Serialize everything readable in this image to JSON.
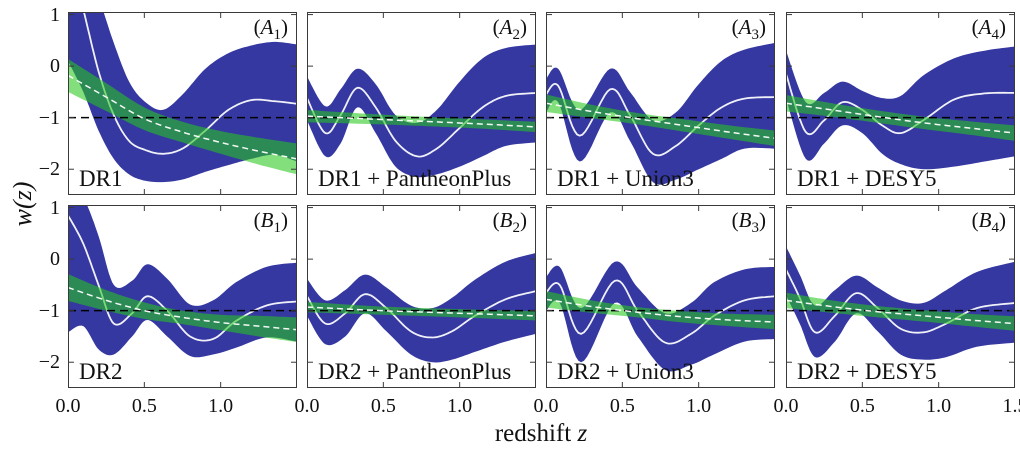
{
  "figure": {
    "axes": {
      "ylabel": "w(z)",
      "xlabel_text": "redshift ",
      "xlabel_var": "z"
    },
    "colors": {
      "blue_band": "#3438a0",
      "green_band": "rgba(40,200,30,0.58)",
      "mean_line": "#ffffff",
      "reference_line": "#000000",
      "frame": "#3a3a3a"
    }
  },
  "chart_data": [
    {
      "type": "area",
      "panel_tag": {
        "letter": "A",
        "sub": "1"
      },
      "dataset_label": "DR1",
      "x_range": [
        0,
        1.5
      ],
      "y_range": [
        -2.5,
        1.05
      ],
      "x_tick_values": [
        0,
        0.5,
        1.0
      ],
      "x_tick_labels": [
        "0.0",
        "0.5",
        "1.0"
      ],
      "y_tick_values": [
        1,
        0,
        -1,
        -2
      ],
      "y_tick_labels": [
        "1",
        "0",
        "−1",
        "−2"
      ],
      "show_y_tick_labels": true,
      "reference_w": -1,
      "blue": {
        "x": [
          0,
          0.1,
          0.2,
          0.3,
          0.4,
          0.5,
          0.62,
          0.75,
          0.9,
          1.05,
          1.2,
          1.35,
          1.5
        ],
        "mean": [
          2.2,
          1.1,
          -0.1,
          -0.95,
          -1.45,
          -1.62,
          -1.7,
          -1.6,
          -1.25,
          -0.85,
          -0.66,
          -0.68,
          -0.73
        ],
        "upper": [
          2.6,
          2.2,
          1.35,
          0.45,
          -0.3,
          -0.68,
          -0.85,
          -0.55,
          -0.05,
          0.25,
          0.4,
          0.47,
          0.42
        ],
        "lower": [
          0.1,
          -0.5,
          -1.25,
          -1.8,
          -2.1,
          -2.22,
          -2.25,
          -2.2,
          -2.05,
          -1.92,
          -1.8,
          -1.72,
          -1.85
        ]
      },
      "green": {
        "x": [
          0,
          0.25,
          0.5,
          0.75,
          1.0,
          1.25,
          1.5
        ],
        "center": [
          -0.18,
          -0.6,
          -1.02,
          -1.28,
          -1.48,
          -1.65,
          -1.8
        ],
        "halfwidth": [
          0.32,
          0.27,
          0.22,
          0.2,
          0.22,
          0.26,
          0.3
        ]
      }
    },
    {
      "type": "area",
      "panel_tag": {
        "letter": "A",
        "sub": "2"
      },
      "dataset_label": "DR1 + PantheonPlus",
      "x_range": [
        0,
        1.5
      ],
      "y_range": [
        -2.5,
        1.05
      ],
      "x_tick_values": [
        0,
        0.5,
        1.0
      ],
      "x_tick_labels": [
        "0.0",
        "0.5",
        "1.0"
      ],
      "y_tick_values": [
        1,
        0,
        -1,
        -2
      ],
      "y_tick_labels": [
        "1",
        "0",
        "−1",
        "−2"
      ],
      "show_y_tick_labels": false,
      "reference_w": -1,
      "blue": {
        "x": [
          0,
          0.12,
          0.22,
          0.33,
          0.45,
          0.58,
          0.72,
          0.85,
          1.0,
          1.15,
          1.3,
          1.5
        ],
        "mean": [
          -0.62,
          -1.3,
          -0.95,
          -0.42,
          -0.8,
          -1.45,
          -1.75,
          -1.6,
          -1.2,
          -0.8,
          -0.58,
          -0.52
        ],
        "upper": [
          -0.2,
          -0.78,
          -0.45,
          -0.05,
          -0.35,
          -0.95,
          -1.1,
          -0.85,
          -0.3,
          0.15,
          0.35,
          0.42
        ],
        "lower": [
          -1.05,
          -1.75,
          -1.5,
          -0.8,
          -1.3,
          -1.95,
          -2.15,
          -2.1,
          -1.95,
          -1.75,
          -1.55,
          -1.48
        ]
      },
      "green": {
        "x": [
          0,
          0.375,
          0.75,
          1.125,
          1.5
        ],
        "center": [
          -0.97,
          -1.02,
          -1.07,
          -1.12,
          -1.18
        ],
        "halfwidth": [
          0.12,
          0.1,
          0.09,
          0.09,
          0.1
        ]
      }
    },
    {
      "type": "area",
      "panel_tag": {
        "letter": "A",
        "sub": "3"
      },
      "dataset_label": "DR1 + Union3",
      "x_range": [
        0,
        1.5
      ],
      "y_range": [
        -2.5,
        1.05
      ],
      "x_tick_values": [
        0,
        0.5,
        1.0
      ],
      "x_tick_labels": [
        "0.0",
        "0.5",
        "1.0"
      ],
      "y_tick_values": [
        1,
        0,
        -1,
        -2
      ],
      "y_tick_labels": [
        "1",
        "0",
        "−1",
        "−2"
      ],
      "show_y_tick_labels": false,
      "reference_w": -1,
      "blue": {
        "x": [
          0,
          0.08,
          0.22,
          0.42,
          0.55,
          0.7,
          0.85,
          1.0,
          1.15,
          1.3,
          1.5
        ],
        "mean": [
          -0.55,
          -0.38,
          -1.35,
          -0.45,
          -0.95,
          -1.7,
          -1.55,
          -1.15,
          -0.8,
          -0.63,
          -0.6
        ],
        "upper": [
          -0.25,
          -0.05,
          -0.85,
          -0.05,
          -0.5,
          -1.05,
          -0.9,
          -0.35,
          0.1,
          0.32,
          0.45
        ],
        "lower": [
          -0.9,
          -0.7,
          -1.85,
          -0.9,
          -1.45,
          -2.25,
          -2.2,
          -2.0,
          -1.8,
          -1.6,
          -1.6
        ]
      },
      "green": {
        "x": [
          0,
          0.3,
          0.6,
          0.9,
          1.2,
          1.5
        ],
        "center": [
          -0.72,
          -0.88,
          -1.02,
          -1.15,
          -1.28,
          -1.4
        ],
        "halfwidth": [
          0.17,
          0.13,
          0.11,
          0.12,
          0.13,
          0.15
        ]
      }
    },
    {
      "type": "area",
      "panel_tag": {
        "letter": "A",
        "sub": "4"
      },
      "dataset_label": "DR1 + DESY5",
      "x_range": [
        0,
        1.5
      ],
      "y_range": [
        -2.5,
        1.05
      ],
      "x_tick_values": [
        0,
        0.5,
        1.0
      ],
      "x_tick_labels": [
        "0.0",
        "0.5",
        "1.0"
      ],
      "y_tick_values": [
        1,
        0,
        -1,
        -2
      ],
      "y_tick_labels": [
        "1",
        "0",
        "−1",
        "−2"
      ],
      "show_y_tick_labels": false,
      "reference_w": -1,
      "blue": {
        "x": [
          0,
          0.13,
          0.25,
          0.37,
          0.5,
          0.63,
          0.75,
          0.9,
          1.1,
          1.3,
          1.5
        ],
        "mean": [
          -0.15,
          -1.28,
          -1.05,
          -0.7,
          -0.85,
          -1.15,
          -1.3,
          -1.05,
          -0.65,
          -0.53,
          -0.52
        ],
        "upper": [
          0.3,
          -0.7,
          -0.52,
          -0.3,
          -0.48,
          -0.62,
          -0.58,
          -0.18,
          0.15,
          0.3,
          0.38
        ],
        "lower": [
          -0.62,
          -1.8,
          -1.5,
          -1.15,
          -1.3,
          -1.7,
          -1.9,
          -2.0,
          -1.95,
          -1.85,
          -1.75
        ]
      },
      "green": {
        "x": [
          0,
          0.3,
          0.6,
          0.9,
          1.2,
          1.5
        ],
        "center": [
          -0.72,
          -0.85,
          -0.98,
          -1.1,
          -1.2,
          -1.3
        ],
        "halfwidth": [
          0.16,
          0.13,
          0.12,
          0.12,
          0.13,
          0.15
        ]
      }
    },
    {
      "type": "area",
      "panel_tag": {
        "letter": "B",
        "sub": "1"
      },
      "dataset_label": "DR2",
      "x_range": [
        0,
        1.5
      ],
      "y_range": [
        -2.5,
        1.05
      ],
      "x_tick_values": [
        0,
        0.5,
        1.0
      ],
      "x_tick_labels": [
        "0.0",
        "0.5",
        "1.0"
      ],
      "y_tick_values": [
        1,
        0,
        -1,
        -2
      ],
      "y_tick_labels": [
        "1",
        "0",
        "−1",
        "−2"
      ],
      "show_y_tick_labels": true,
      "reference_w": -1,
      "blue": {
        "x": [
          0,
          0.1,
          0.2,
          0.3,
          0.42,
          0.52,
          0.65,
          0.8,
          0.95,
          1.1,
          1.3,
          1.5
        ],
        "mean": [
          0.85,
          0.3,
          -0.5,
          -1.25,
          -1.05,
          -0.72,
          -1.0,
          -1.5,
          -1.55,
          -1.2,
          -0.9,
          -0.82
        ],
        "upper": [
          1.5,
          1.2,
          0.45,
          -0.5,
          -0.42,
          -0.1,
          -0.38,
          -0.88,
          -0.8,
          -0.45,
          -0.15,
          -0.07
        ],
        "lower": [
          -1.42,
          -1.3,
          -1.75,
          -1.85,
          -1.5,
          -1.18,
          -1.5,
          -1.88,
          -1.85,
          -1.72,
          -1.52,
          -1.6
        ]
      },
      "green": {
        "x": [
          0,
          0.25,
          0.5,
          0.75,
          1.0,
          1.25,
          1.5
        ],
        "center": [
          -0.55,
          -0.8,
          -1.0,
          -1.13,
          -1.23,
          -1.3,
          -1.37
        ],
        "halfwidth": [
          0.26,
          0.2,
          0.16,
          0.13,
          0.15,
          0.2,
          0.24
        ]
      }
    },
    {
      "type": "area",
      "panel_tag": {
        "letter": "B",
        "sub": "2"
      },
      "dataset_label": "DR2 + PantheonPlus",
      "x_range": [
        0,
        1.5
      ],
      "y_range": [
        -2.5,
        1.05
      ],
      "x_tick_values": [
        0,
        0.5,
        1.0
      ],
      "x_tick_labels": [
        "0.0",
        "0.5",
        "1.0"
      ],
      "y_tick_values": [
        1,
        0,
        -1,
        -2
      ],
      "y_tick_labels": [
        "1",
        "0",
        "−1",
        "−2"
      ],
      "show_y_tick_labels": false,
      "reference_w": -1,
      "blue": {
        "x": [
          0,
          0.12,
          0.25,
          0.38,
          0.52,
          0.68,
          0.82,
          0.95,
          1.1,
          1.3,
          1.5
        ],
        "mean": [
          -0.72,
          -1.25,
          -1.05,
          -0.68,
          -0.95,
          -1.4,
          -1.52,
          -1.4,
          -1.1,
          -0.78,
          -0.62
        ],
        "upper": [
          -0.38,
          -0.8,
          -0.6,
          -0.3,
          -0.55,
          -0.9,
          -0.95,
          -0.75,
          -0.4,
          -0.05,
          0.12
        ],
        "lower": [
          -1.1,
          -1.65,
          -1.5,
          -1.05,
          -1.4,
          -1.85,
          -2.0,
          -1.95,
          -1.8,
          -1.6,
          -1.45
        ]
      },
      "green": {
        "x": [
          0,
          0.5,
          1.0,
          1.5
        ],
        "center": [
          -0.93,
          -1.0,
          -1.05,
          -1.1
        ],
        "halfwidth": [
          0.1,
          0.08,
          0.08,
          0.09
        ]
      }
    },
    {
      "type": "area",
      "panel_tag": {
        "letter": "B",
        "sub": "3"
      },
      "dataset_label": "DR2 + Union3",
      "x_range": [
        0,
        1.5
      ],
      "y_range": [
        -2.5,
        1.05
      ],
      "x_tick_values": [
        0,
        0.5,
        1.0
      ],
      "x_tick_labels": [
        "0.0",
        "0.5",
        "1.0"
      ],
      "y_tick_values": [
        1,
        0,
        -1,
        -2
      ],
      "y_tick_labels": [
        "1",
        "0",
        "−1",
        "−2"
      ],
      "show_y_tick_labels": false,
      "reference_w": -1,
      "blue": {
        "x": [
          0,
          0.09,
          0.23,
          0.45,
          0.6,
          0.78,
          0.95,
          1.1,
          1.3,
          1.5
        ],
        "mean": [
          -0.65,
          -0.5,
          -1.45,
          -0.42,
          -1.0,
          -1.62,
          -1.45,
          -1.1,
          -0.8,
          -0.72
        ],
        "upper": [
          -0.35,
          -0.15,
          -0.95,
          -0.05,
          -0.55,
          -1.05,
          -0.85,
          -0.45,
          -0.2,
          -0.15
        ],
        "lower": [
          -1.0,
          -0.85,
          -2.0,
          -0.85,
          -1.5,
          -2.15,
          -2.05,
          -1.85,
          -1.6,
          -1.55
        ]
      },
      "green": {
        "x": [
          0,
          0.3,
          0.6,
          0.9,
          1.2,
          1.5
        ],
        "center": [
          -0.78,
          -0.92,
          -1.03,
          -1.12,
          -1.18,
          -1.22
        ],
        "halfwidth": [
          0.16,
          0.12,
          0.1,
          0.11,
          0.12,
          0.14
        ]
      }
    },
    {
      "type": "area",
      "panel_tag": {
        "letter": "B",
        "sub": "4"
      },
      "dataset_label": "DR2 + DESY5",
      "x_range": [
        0,
        1.5
      ],
      "y_range": [
        -2.5,
        1.05
      ],
      "x_tick_values": [
        0,
        0.5,
        1.0,
        1.5
      ],
      "x_tick_labels": [
        "0.0",
        "0.5",
        "1.0",
        "1.5"
      ],
      "y_tick_values": [
        1,
        0,
        -1,
        -2
      ],
      "y_tick_labels": [
        "1",
        "0",
        "−1",
        "−2"
      ],
      "show_y_tick_labels": false,
      "reference_w": -1,
      "blue": {
        "x": [
          0,
          0.09,
          0.19,
          0.32,
          0.46,
          0.6,
          0.75,
          0.9,
          1.05,
          1.25,
          1.5
        ],
        "mean": [
          -0.2,
          -0.75,
          -1.42,
          -1.1,
          -0.66,
          -0.95,
          -1.35,
          -1.42,
          -1.25,
          -0.95,
          -0.85
        ],
        "upper": [
          0.25,
          -0.3,
          -0.9,
          -0.6,
          -0.32,
          -0.55,
          -0.8,
          -0.85,
          -0.6,
          -0.25,
          -0.05
        ],
        "lower": [
          -0.7,
          -1.25,
          -1.9,
          -1.6,
          -1.05,
          -1.4,
          -1.85,
          -1.95,
          -1.9,
          -1.7,
          -1.62
        ]
      },
      "green": {
        "x": [
          0,
          0.3,
          0.6,
          0.9,
          1.2,
          1.5
        ],
        "center": [
          -0.8,
          -0.92,
          -1.02,
          -1.1,
          -1.18,
          -1.25
        ],
        "halfwidth": [
          0.15,
          0.12,
          0.11,
          0.11,
          0.12,
          0.14
        ]
      }
    }
  ]
}
